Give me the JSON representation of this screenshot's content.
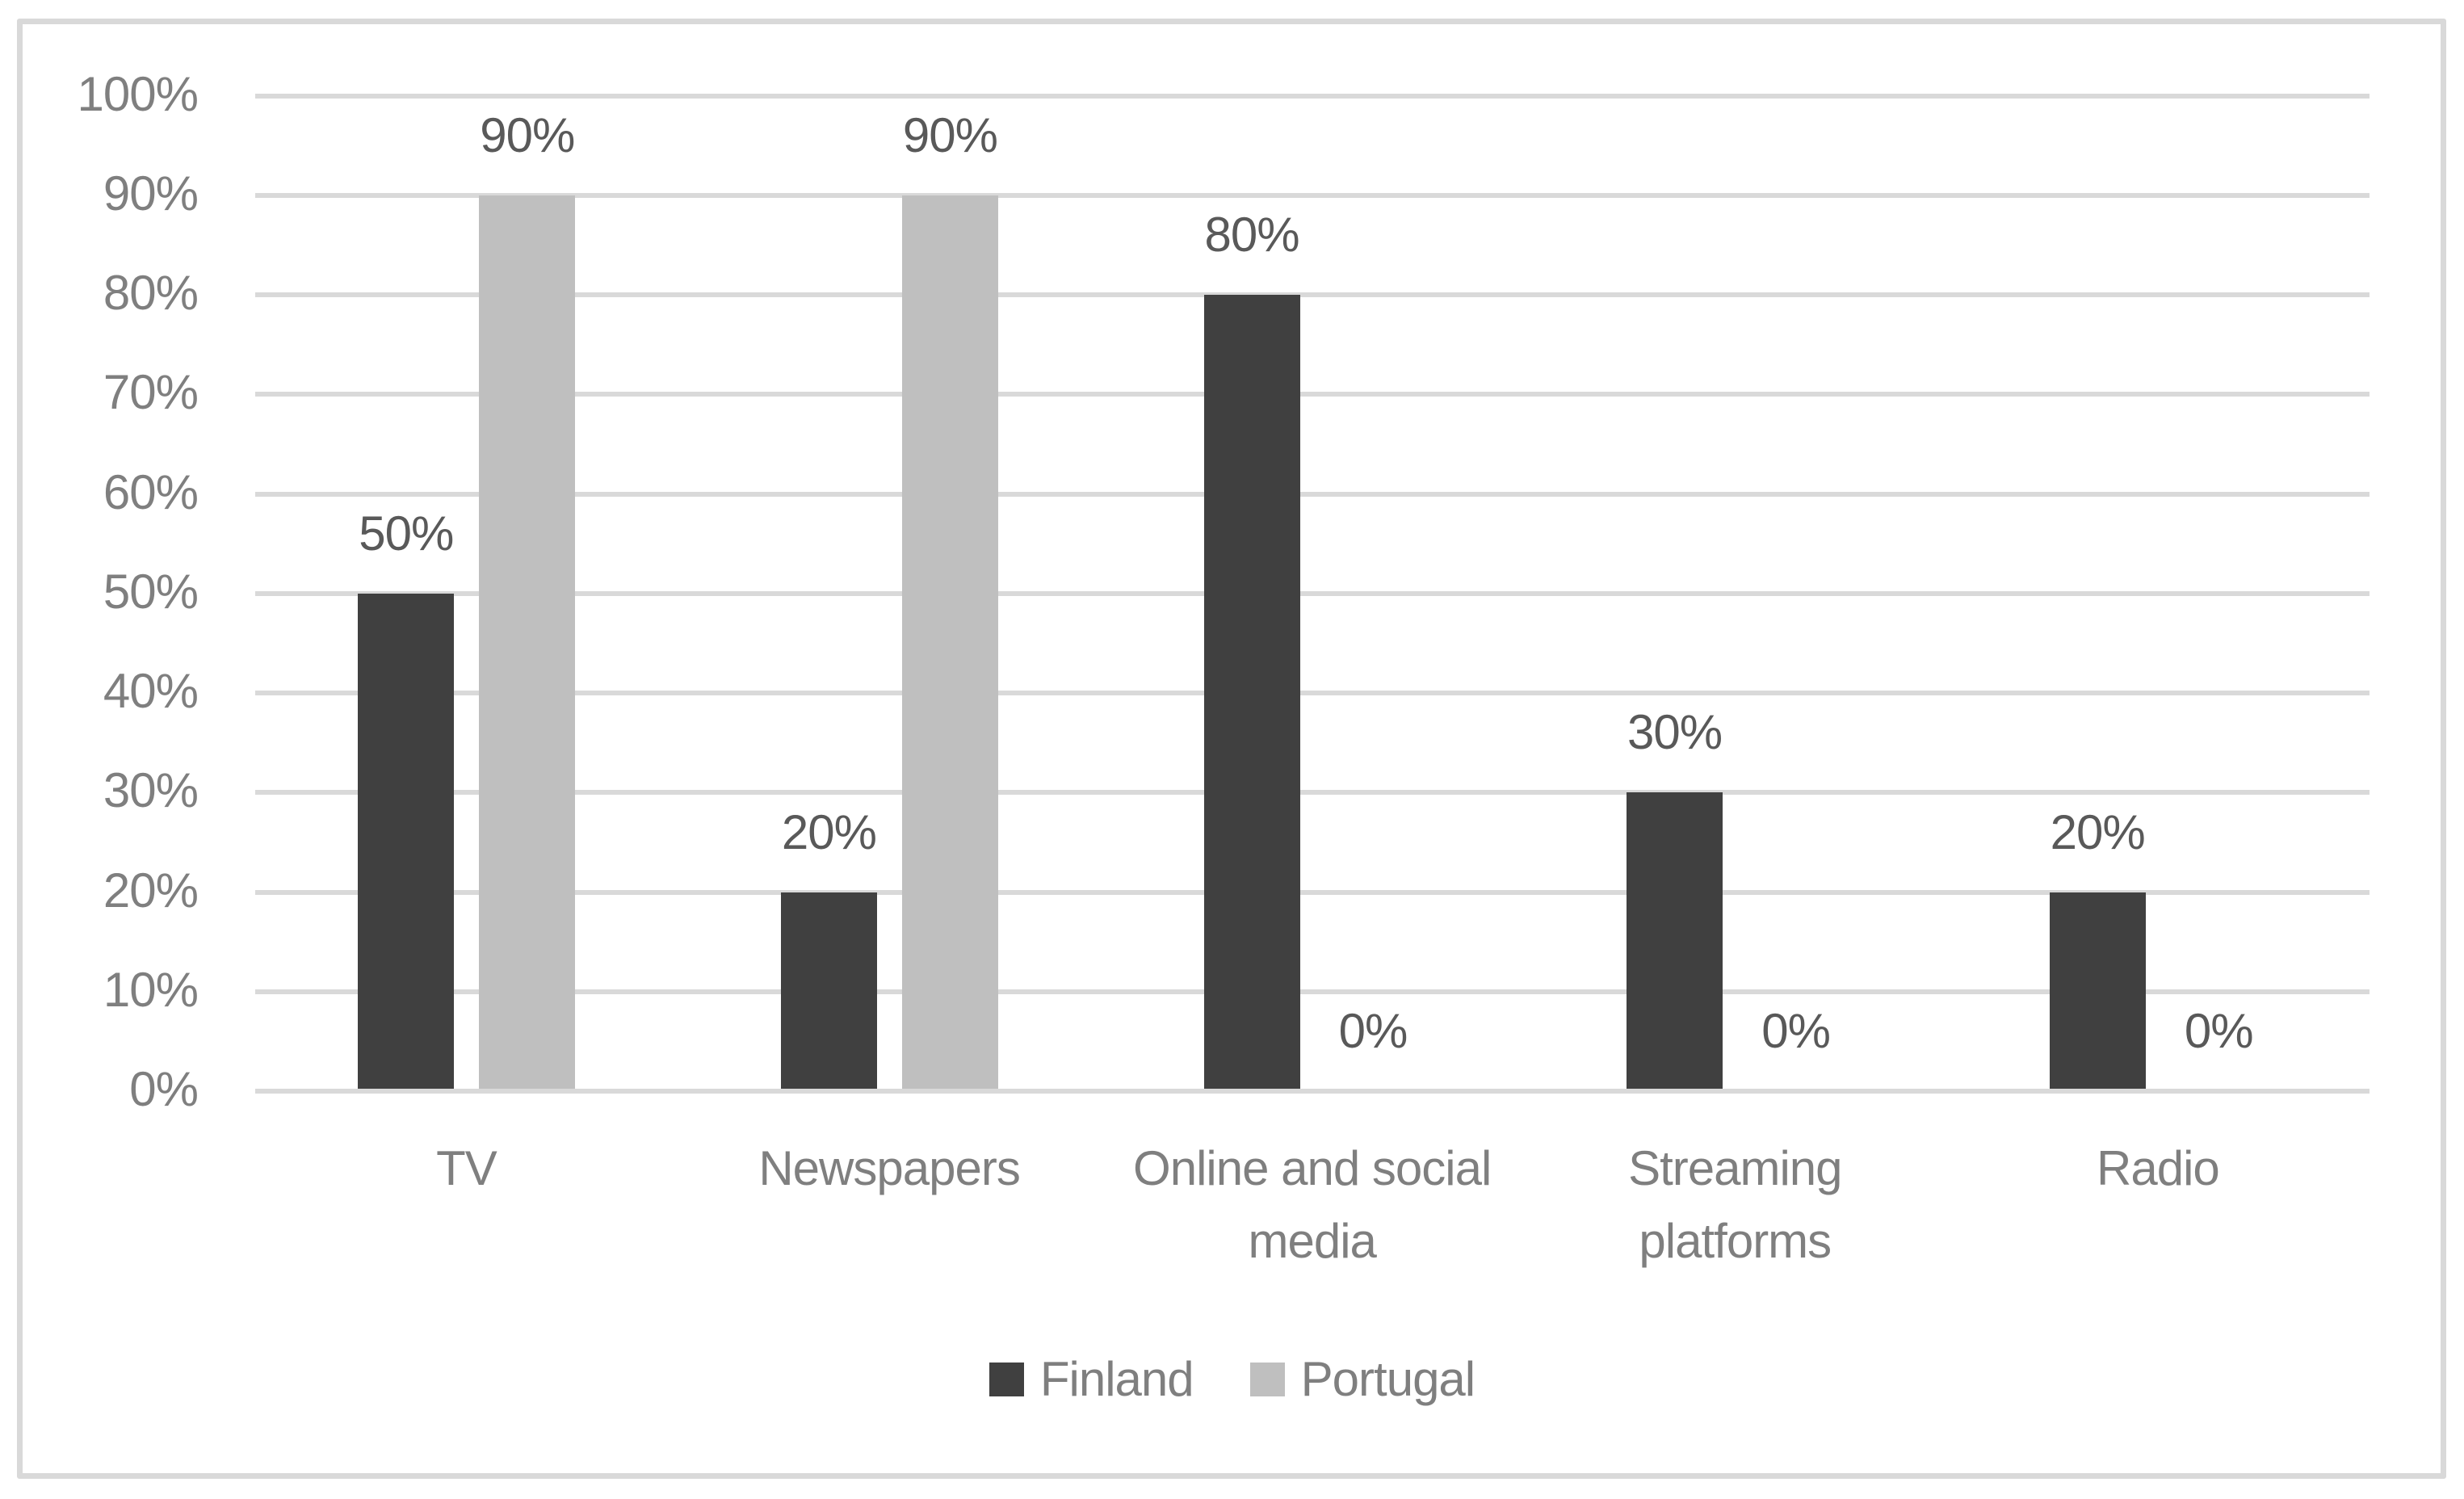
{
  "chart_data": {
    "type": "bar",
    "title": "",
    "xlabel": "",
    "ylabel": "",
    "categories": [
      "TV",
      "Newspapers",
      "Online and social media",
      "Streaming platforms",
      "Radio"
    ],
    "category_label_lines": [
      [
        "TV"
      ],
      [
        "Newspapers"
      ],
      [
        "Online and social",
        "media"
      ],
      [
        "Streaming",
        "platforms"
      ],
      [
        "Radio"
      ]
    ],
    "series": [
      {
        "name": "Finland",
        "color": "#404040",
        "values": [
          50,
          20,
          80,
          30,
          20
        ]
      },
      {
        "name": "Portugal",
        "color": "#bfbfbf",
        "values": [
          90,
          90,
          0,
          0,
          0
        ]
      }
    ],
    "data_labels": [
      [
        "50%",
        "20%",
        "80%",
        "30%",
        "20%"
      ],
      [
        "90%",
        "90%",
        "0%",
        "0%",
        "0%"
      ]
    ],
    "ylim": [
      0,
      100
    ],
    "y_ticks": [
      0,
      10,
      20,
      30,
      40,
      50,
      60,
      70,
      80,
      90,
      100
    ],
    "y_tick_labels": [
      "0%",
      "10%",
      "20%",
      "30%",
      "40%",
      "50%",
      "60%",
      "70%",
      "80%",
      "90%",
      "100%"
    ],
    "grid": true,
    "legend_position": "bottom",
    "value_format": "percent"
  },
  "legend": {
    "items": [
      {
        "label": "Finland",
        "color": "#404040"
      },
      {
        "label": "Portugal",
        "color": "#bfbfbf"
      }
    ]
  },
  "colors": {
    "gridline": "#d9d9d9",
    "frame_border": "#d9d9d9",
    "axis_text": "#7f7f7f",
    "data_label_text": "#595959"
  }
}
